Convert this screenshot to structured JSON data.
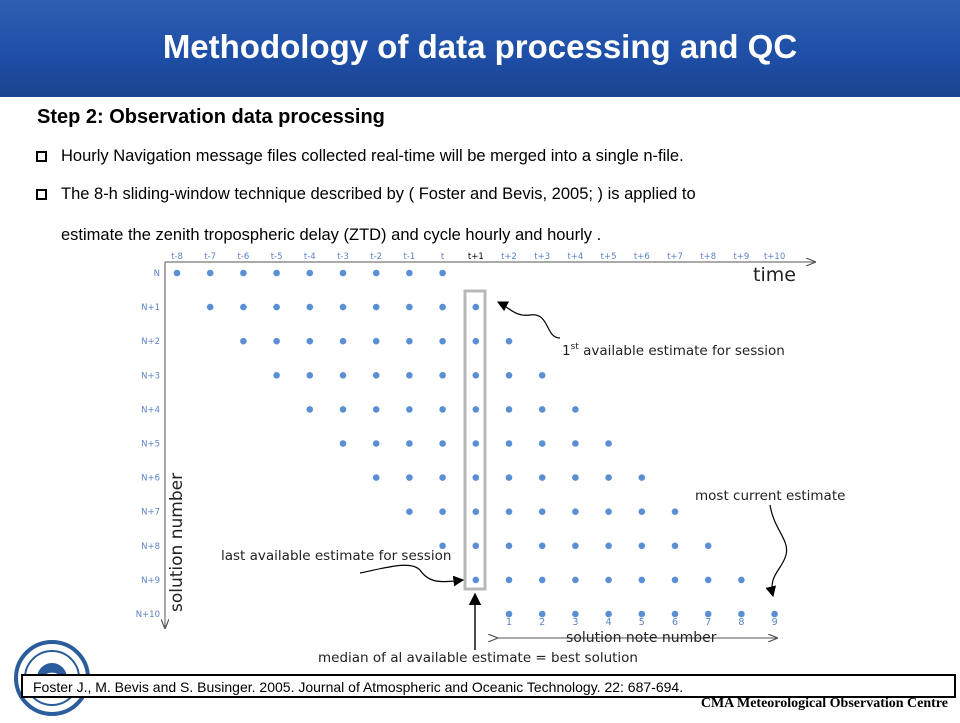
{
  "header": {
    "title": "Methodology of data processing and QC"
  },
  "step": {
    "title": "Step 2: Observation data processing"
  },
  "bullets": [
    {
      "line1": "Hourly Navigation message files collected real-time will be merged into a single n-file."
    },
    {
      "line1": "The 8-h sliding-window technique described by ( Foster and Bevis, 2005; ) is applied to",
      "line2": "estimate the zenith tropospheric delay (ZTD) and cycle hourly and hourly ."
    }
  ],
  "diagram": {
    "time_labels": [
      "t-8",
      "t-7",
      "t-6",
      "t-5",
      "t-4",
      "t-3",
      "t-2",
      "t-1",
      "t",
      "t+1",
      "t+2",
      "t+3",
      "t+4",
      "t+5",
      "t+6",
      "t+7",
      "t+8",
      "t+9",
      "t+10"
    ],
    "row_labels": [
      "N",
      "N+1",
      "N+2",
      "N+3",
      "N+4",
      "N+5",
      "N+6",
      "N+7",
      "N+8",
      "N+9",
      "N+10"
    ],
    "time_axis_label": "time",
    "solution_axis_label": "solution number",
    "note_numbers": [
      "1",
      "2",
      "3",
      "4",
      "5",
      "6",
      "7",
      "8",
      "9"
    ],
    "note_axis_label": "solution note number",
    "annotations": {
      "first_prefix": "1",
      "first_sup": "st",
      "first_rest": " available estimate for session",
      "most_current": "most current estimate",
      "last_available": "last available estimate for session",
      "median": "median of al available estimate = best solution"
    },
    "colors": {
      "dot": "#5b8fd4",
      "highlight_box": "#b8b8b8",
      "time_label": "#5a82c4"
    }
  },
  "reference": {
    "text": "Foster J., M. Bevis and S. Businger. 2005. Journal of Atmospheric and Oceanic Technology. 22: 687-694."
  },
  "footer": {
    "org": "CMA  Meteorological  Observation  Centre"
  },
  "logo": {
    "icon": "cma-logo-icon"
  }
}
